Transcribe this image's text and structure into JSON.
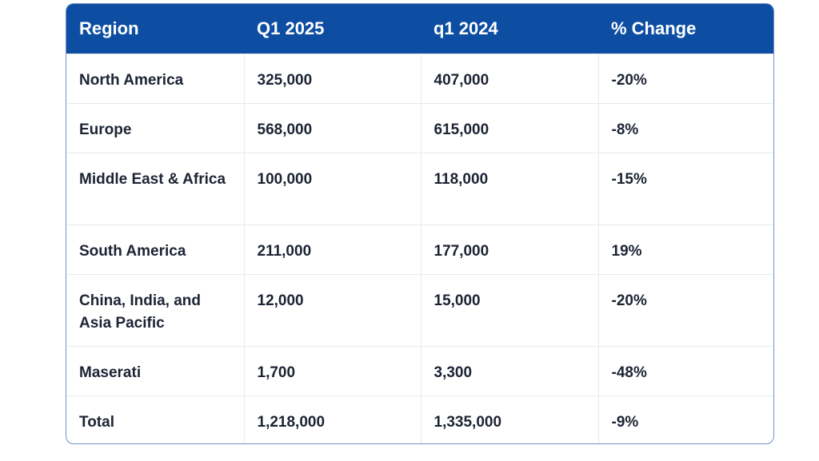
{
  "table": {
    "headers": [
      "Region",
      "Q1 2025",
      "q1 2024",
      "% Change"
    ],
    "rows": [
      [
        "North America",
        "325,000",
        "407,000",
        "-20%"
      ],
      [
        "Europe",
        "568,000",
        "615,000",
        "-8%"
      ],
      [
        "Middle East & Africa",
        "100,000",
        "118,000",
        "-15%"
      ],
      [
        "South America",
        "211,000",
        "177,000",
        "19%"
      ],
      [
        "China, India, and Asia Pacific",
        "12,000",
        "15,000",
        "-20%"
      ],
      [
        "Maserati",
        "1,700",
        "3,300",
        "-48%"
      ],
      [
        "Total",
        "1,218,000",
        "1,335,000",
        "-9%"
      ]
    ]
  },
  "colors": {
    "header_bg": "#0d4ea3",
    "header_text": "#ffffff",
    "border": "#6f93c9",
    "body_text": "#1c2333"
  }
}
